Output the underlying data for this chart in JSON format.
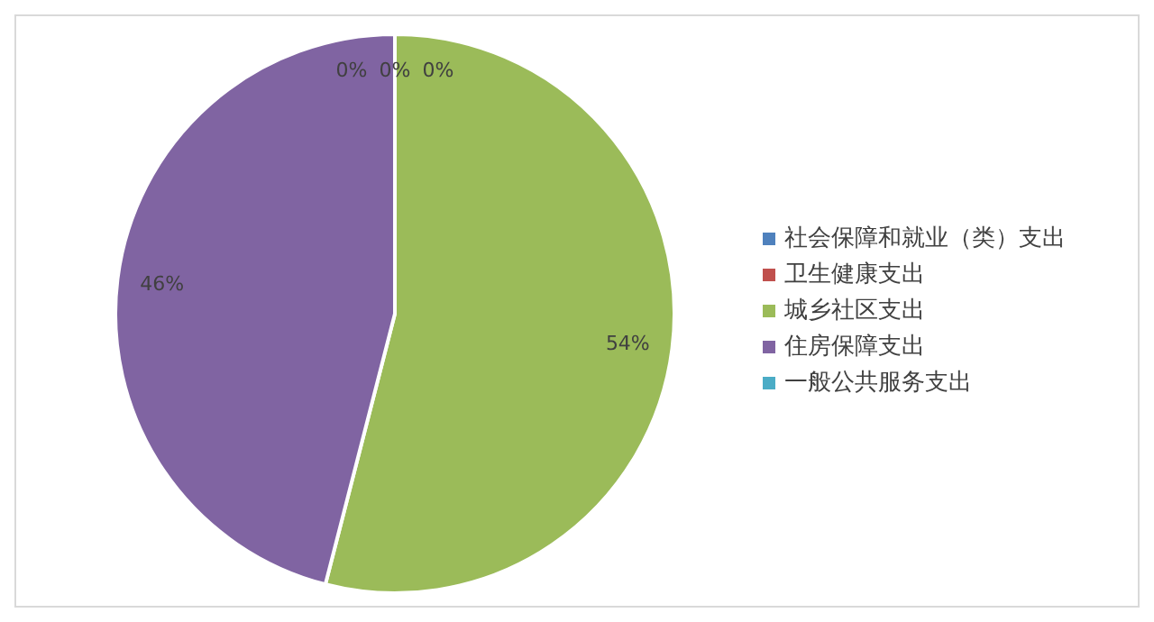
{
  "chart_data": {
    "type": "pie",
    "categories": [
      "社会保障和就业（类）支出",
      "卫生健康支出",
      "城乡社区支出",
      "住房保障支出",
      "一般公共服务支出"
    ],
    "values": [
      0,
      0,
      54,
      46,
      0
    ],
    "colors": [
      "#4f81bd",
      "#c0504d",
      "#9bbb59",
      "#8064a2",
      "#4bacc6"
    ],
    "value_labels": [
      "0%",
      "0%",
      "54%",
      "46%",
      "0%"
    ],
    "legend": "right"
  }
}
